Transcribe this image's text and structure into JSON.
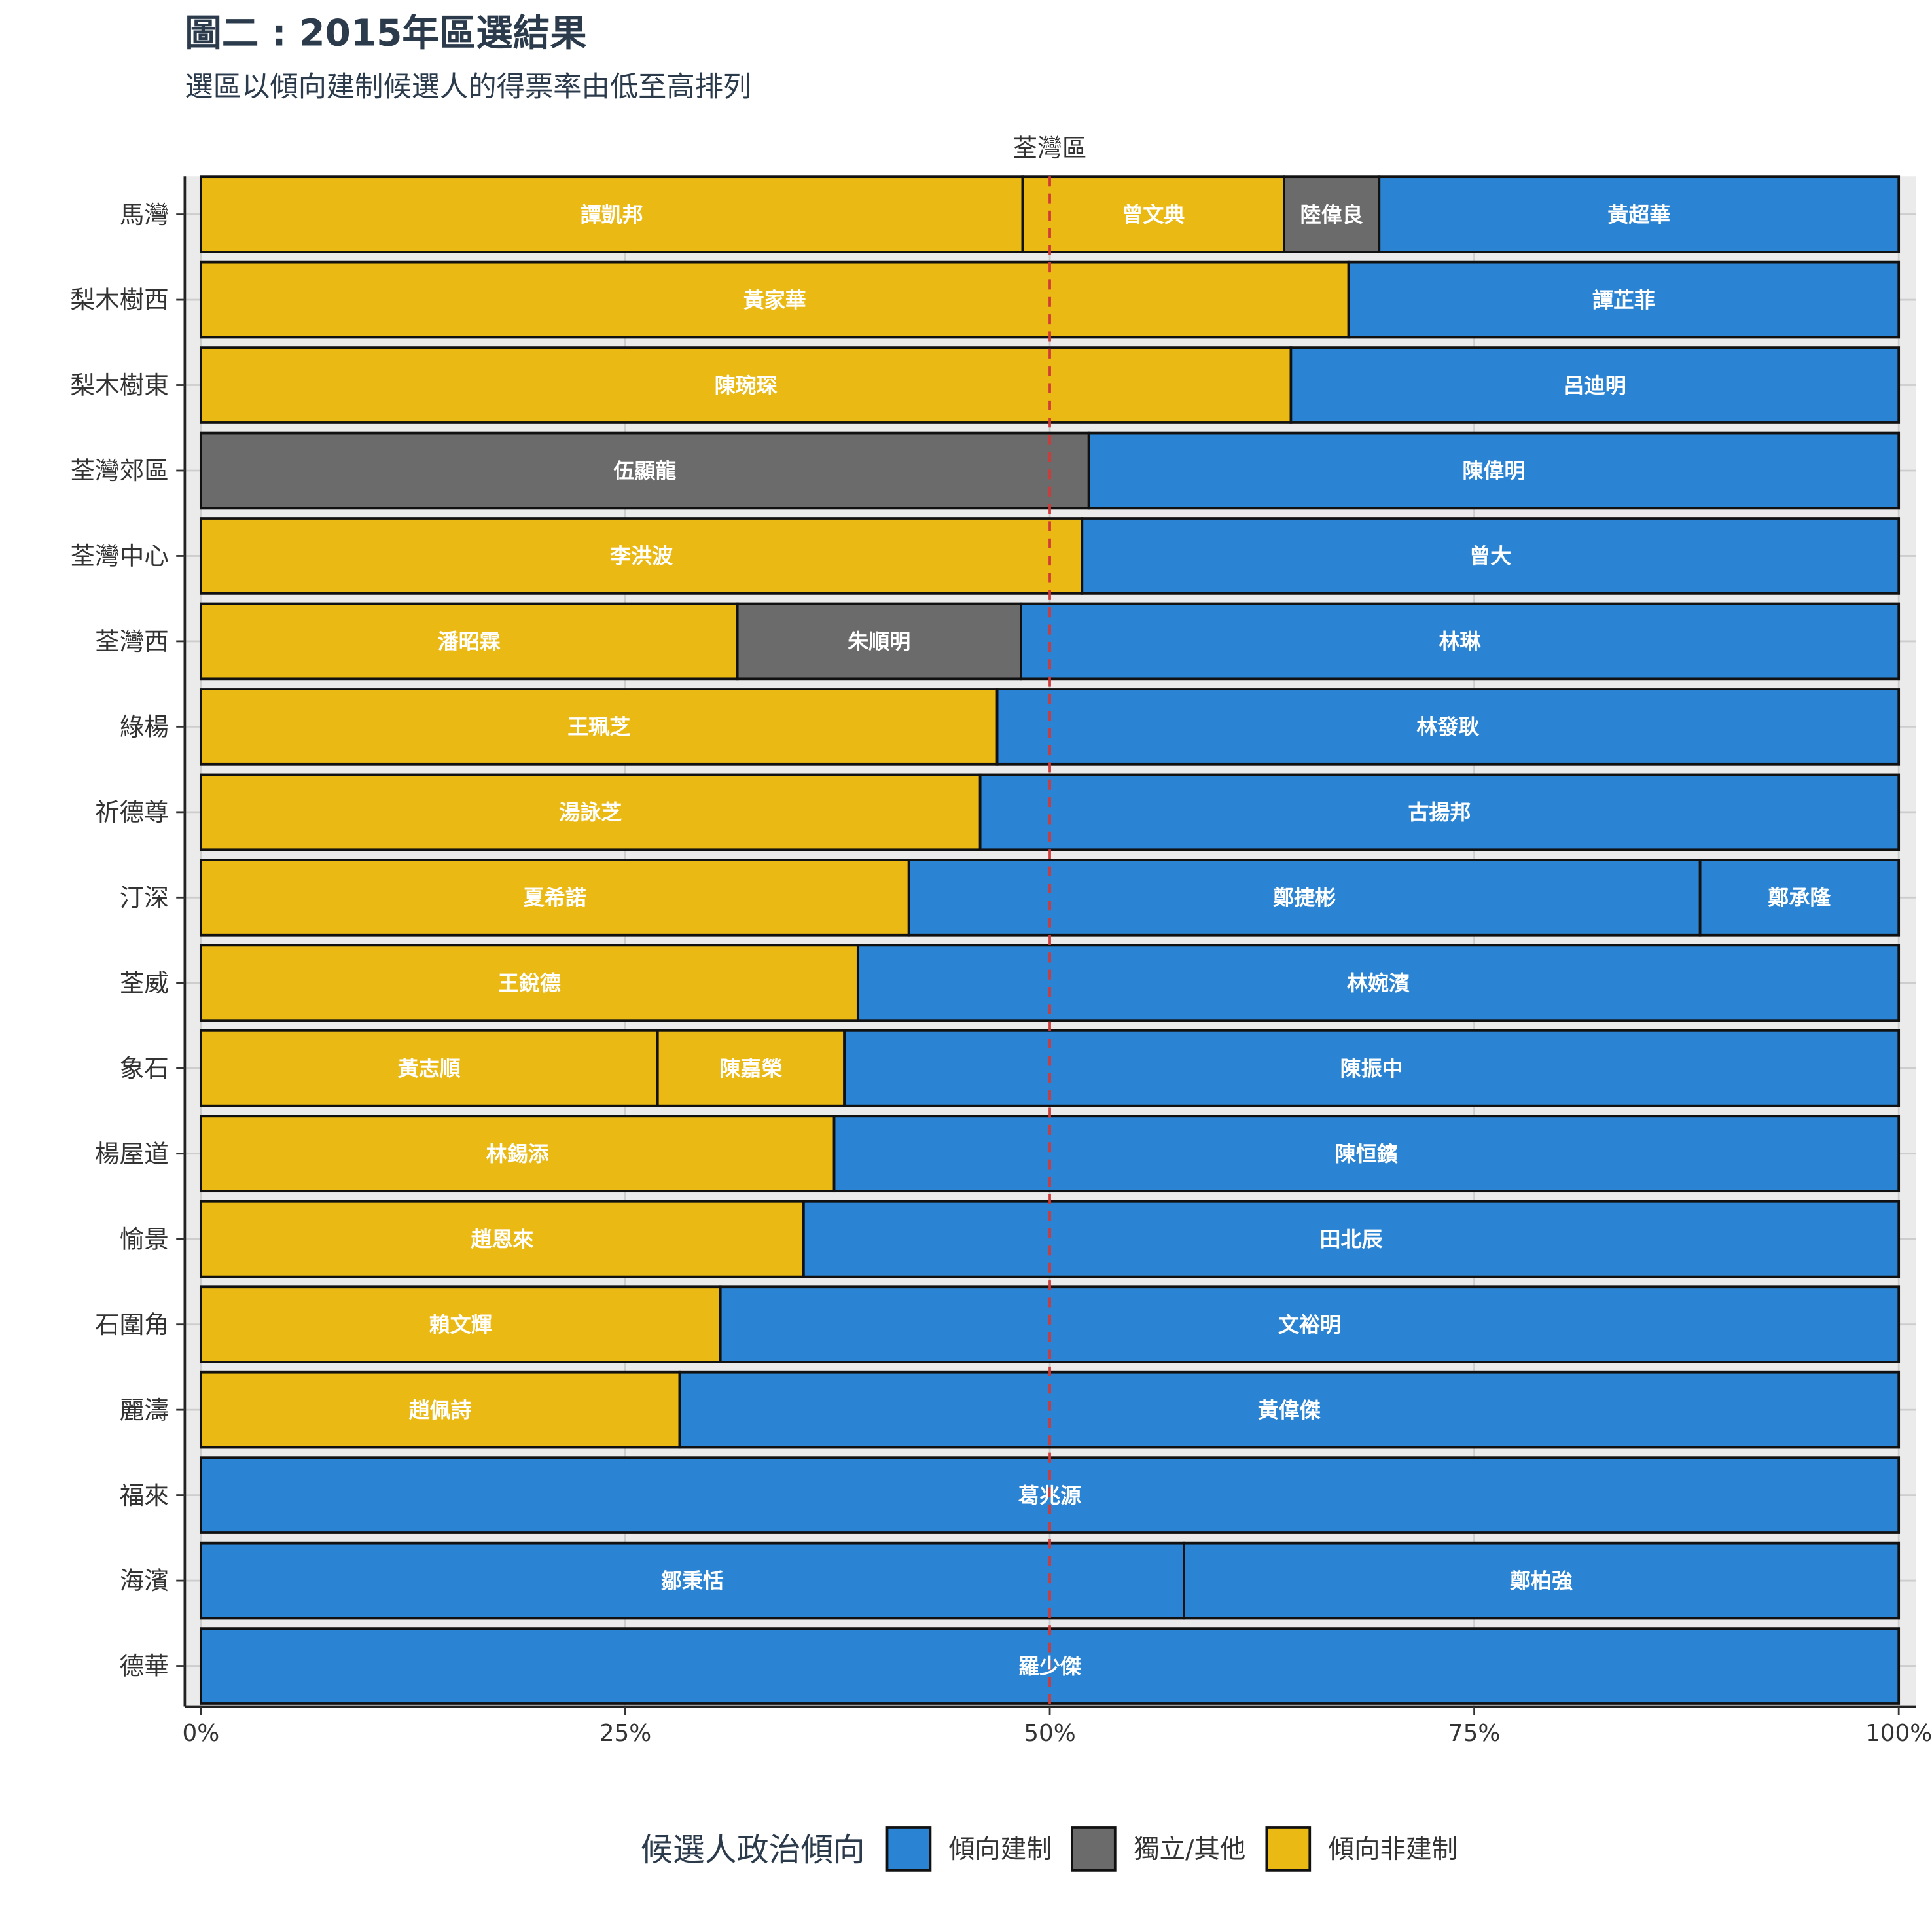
{
  "title": "圖二 : 2015年區選結果",
  "subtitle": "選區以傾向建制候選人的得票率由低至高排列",
  "chart_data": {
    "type": "bar",
    "facet": "荃灣區",
    "xlabel": "",
    "ylabel": "",
    "xlim": [
      0,
      100
    ],
    "x_tick_values": [
      0,
      25,
      50,
      75,
      100
    ],
    "x_ticks": [
      "0%",
      "25%",
      "50%",
      "75%",
      "100%"
    ],
    "reference_line": 50,
    "rows": [
      {
        "district": "馬灣",
        "candidates": [
          {
            "name": "譚凱邦",
            "camp": "傾向非建制",
            "share": 48.4
          },
          {
            "name": "曾文典",
            "camp": "傾向非建制",
            "share": 15.4
          },
          {
            "name": "陸偉良",
            "camp": "獨立/其他",
            "share": 5.6
          },
          {
            "name": "黃超華",
            "camp": "傾向建制",
            "share": 30.6
          }
        ]
      },
      {
        "district": "梨木樹西",
        "candidates": [
          {
            "name": "黃家華",
            "camp": "傾向非建制",
            "share": 67.6
          },
          {
            "name": "譚芷菲",
            "camp": "傾向建制",
            "share": 32.4
          }
        ]
      },
      {
        "district": "梨木樹東",
        "candidates": [
          {
            "name": "陳琬琛",
            "camp": "傾向非建制",
            "share": 64.2
          },
          {
            "name": "呂迪明",
            "camp": "傾向建制",
            "share": 35.8
          }
        ]
      },
      {
        "district": "荃灣郊區",
        "candidates": [
          {
            "name": "伍顯龍",
            "camp": "獨立/其他",
            "share": 52.3
          },
          {
            "name": "陳偉明",
            "camp": "傾向建制",
            "share": 47.7
          }
        ]
      },
      {
        "district": "荃灣中心",
        "candidates": [
          {
            "name": "李洪波",
            "camp": "傾向非建制",
            "share": 51.9
          },
          {
            "name": "曾大",
            "camp": "傾向建制",
            "share": 48.1
          }
        ]
      },
      {
        "district": "荃灣西",
        "candidates": [
          {
            "name": "潘昭霖",
            "camp": "傾向非建制",
            "share": 31.6
          },
          {
            "name": "朱順明",
            "camp": "獨立/其他",
            "share": 16.7
          },
          {
            "name": "林琳",
            "camp": "傾向建制",
            "share": 51.7
          }
        ]
      },
      {
        "district": "綠楊",
        "candidates": [
          {
            "name": "王珮芝",
            "camp": "傾向非建制",
            "share": 46.9
          },
          {
            "name": "林發耿",
            "camp": "傾向建制",
            "share": 53.1
          }
        ]
      },
      {
        "district": "祈德尊",
        "candidates": [
          {
            "name": "湯詠芝",
            "camp": "傾向非建制",
            "share": 45.9
          },
          {
            "name": "古揚邦",
            "camp": "傾向建制",
            "share": 54.1
          }
        ]
      },
      {
        "district": "汀深",
        "candidates": [
          {
            "name": "夏希諾",
            "camp": "傾向非建制",
            "share": 41.7
          },
          {
            "name": "鄭捷彬",
            "camp": "傾向建制",
            "share": 46.6
          },
          {
            "name": "鄭承隆",
            "camp": "傾向建制",
            "share": 11.7
          }
        ]
      },
      {
        "district": "荃威",
        "candidates": [
          {
            "name": "王銳德",
            "camp": "傾向非建制",
            "share": 38.7
          },
          {
            "name": "林婉濱",
            "camp": "傾向建制",
            "share": 61.3
          }
        ]
      },
      {
        "district": "象石",
        "candidates": [
          {
            "name": "黃志順",
            "camp": "傾向非建制",
            "share": 26.9
          },
          {
            "name": "陳嘉榮",
            "camp": "傾向非建制",
            "share": 11.0
          },
          {
            "name": "陳振中",
            "camp": "傾向建制",
            "share": 62.1
          }
        ]
      },
      {
        "district": "楊屋道",
        "candidates": [
          {
            "name": "林錫添",
            "camp": "傾向非建制",
            "share": 37.3
          },
          {
            "name": "陳恒鑌",
            "camp": "傾向建制",
            "share": 62.7
          }
        ]
      },
      {
        "district": "愉景",
        "candidates": [
          {
            "name": "趙恩來",
            "camp": "傾向非建制",
            "share": 35.5
          },
          {
            "name": "田北辰",
            "camp": "傾向建制",
            "share": 64.5
          }
        ]
      },
      {
        "district": "石圍角",
        "candidates": [
          {
            "name": "賴文輝",
            "camp": "傾向非建制",
            "share": 30.6
          },
          {
            "name": "文裕明",
            "camp": "傾向建制",
            "share": 69.4
          }
        ]
      },
      {
        "district": "麗濤",
        "candidates": [
          {
            "name": "趙佩詩",
            "camp": "傾向非建制",
            "share": 28.2
          },
          {
            "name": "黃偉傑",
            "camp": "傾向建制",
            "share": 71.8
          }
        ]
      },
      {
        "district": "福來",
        "candidates": [
          {
            "name": "葛兆源",
            "camp": "傾向建制",
            "share": 100
          }
        ]
      },
      {
        "district": "海濱",
        "candidates": [
          {
            "name": "鄒秉恬",
            "camp": "傾向建制",
            "share": 57.9
          },
          {
            "name": "鄭柏強",
            "camp": "傾向建制",
            "share": 42.1
          }
        ]
      },
      {
        "district": "德華",
        "candidates": [
          {
            "name": "羅少傑",
            "camp": "傾向建制",
            "share": 100
          }
        ]
      }
    ],
    "legend": {
      "title": "候選人政治傾向",
      "entries": [
        {
          "label": "傾向建制",
          "color": "#2b84d3"
        },
        {
          "label": "獨立/其他",
          "color": "#6b6b6b"
        },
        {
          "label": "傾向非建制",
          "color": "#ebb914"
        }
      ]
    }
  }
}
